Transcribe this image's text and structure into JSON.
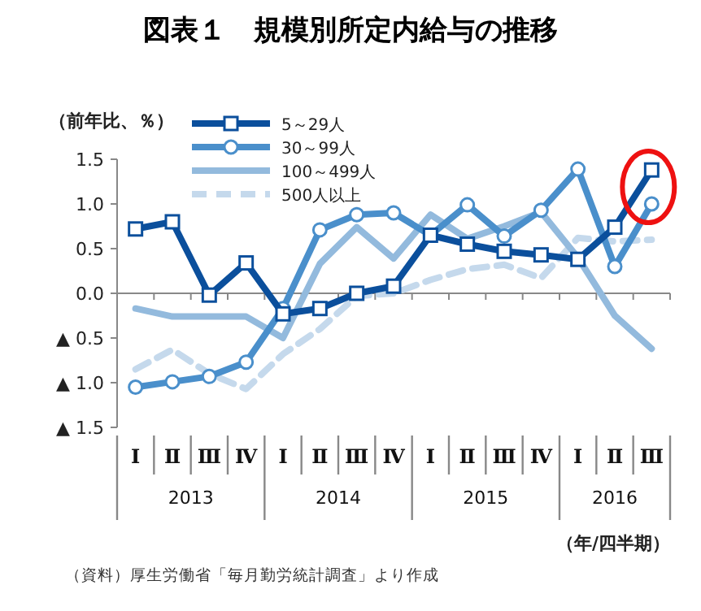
{
  "chart_data": {
    "type": "line",
    "title": "図表１　規模別所定内給与の推移",
    "ylabel": "（前年比、％）",
    "xlabel": "（年/四半期）",
    "categories": [
      "Ⅰ",
      "Ⅱ",
      "Ⅲ",
      "Ⅳ",
      "Ⅰ",
      "Ⅱ",
      "Ⅲ",
      "Ⅳ",
      "Ⅰ",
      "Ⅱ",
      "Ⅲ",
      "Ⅳ",
      "Ⅰ",
      "Ⅱ",
      "Ⅲ"
    ],
    "series": [
      {
        "name": "5～29人",
        "color": "#0b4f9c",
        "marker": "square",
        "line_style": "solid",
        "values": [
          0.72,
          0.8,
          -0.02,
          0.34,
          -0.23,
          -0.17,
          0.0,
          0.08,
          0.65,
          0.55,
          0.47,
          0.43,
          0.38,
          0.74,
          1.38
        ]
      },
      {
        "name": "30～99人",
        "color": "#4a8fcb",
        "marker": "circle",
        "line_style": "solid",
        "values": [
          -1.05,
          -0.99,
          -0.93,
          -0.77,
          -0.17,
          0.71,
          0.88,
          0.9,
          0.65,
          0.99,
          0.64,
          0.93,
          1.39,
          0.3,
          1.0
        ]
      },
      {
        "name": "100～499人",
        "color": "#93badd",
        "marker": "none",
        "line_style": "solid",
        "values": [
          -0.17,
          -0.26,
          -0.26,
          -0.26,
          -0.5,
          0.33,
          0.74,
          0.39,
          0.88,
          0.61,
          0.75,
          0.91,
          0.4,
          -0.25,
          -0.62
        ]
      },
      {
        "name": "500人以上",
        "color": "#c5d9ec",
        "marker": "none",
        "line_style": "dashed",
        "values": [
          -0.85,
          -0.63,
          -0.9,
          -1.07,
          -0.68,
          -0.4,
          -0.03,
          0.0,
          0.15,
          0.27,
          0.32,
          0.17,
          0.62,
          0.58,
          0.6
        ]
      }
    ],
    "ylim": [
      -1.5,
      1.5
    ],
    "yticks": [
      {
        "value": 1.5,
        "label": "1.5"
      },
      {
        "value": 1,
        "label": "1.0"
      },
      {
        "value": 0.5,
        "label": "0.5"
      },
      {
        "value": 0,
        "label": "0.0"
      },
      {
        "value": -0.5,
        "label": "▲ 0.5"
      },
      {
        "value": -1.0,
        "label": "▲ 1.0"
      },
      {
        "value": -1.5,
        "label": "▲ 1.5"
      }
    ],
    "grid": false,
    "ref_lines": [
      {
        "axis": "y",
        "value": 0,
        "color": "#888888"
      }
    ],
    "legend": "top left",
    "annotations": [
      "2013",
      "2014",
      "2015",
      "2016",
      "（資料）厚生労働省「毎月勤労統計調査」より作成"
    ]
  }
}
